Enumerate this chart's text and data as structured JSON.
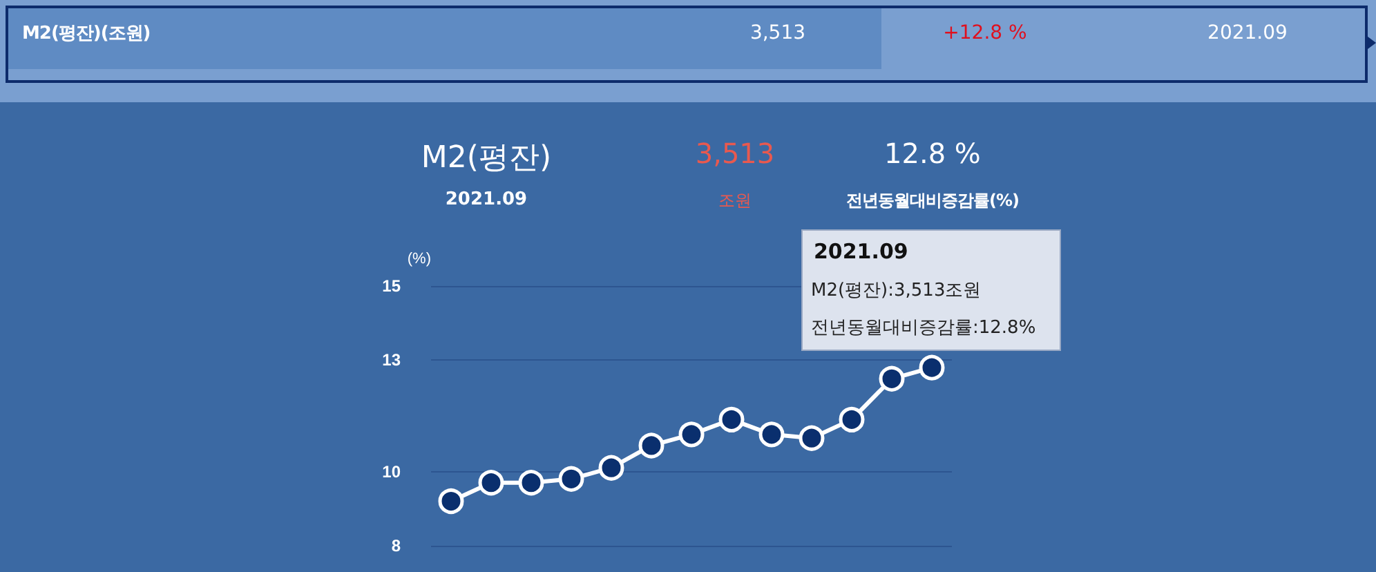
{
  "chart_data": {
    "type": "line",
    "title": "M2(평잔)",
    "subtitle": "2021.09",
    "ylabel": "(%)",
    "annotations": [
      "M2(평잔)(조원)",
      "3,513",
      "+12.8 %",
      "2021.09",
      "3,513",
      "조원",
      "12.8 %",
      "전년동월대비증감률(%)",
      "2021.09",
      "M2(평잔):3,513조원",
      "전년동월대비증감률:12.8%"
    ],
    "categories": [
      null,
      null,
      null,
      null,
      null,
      null,
      null,
      null,
      null,
      null,
      null,
      null,
      null
    ],
    "series": [
      {
        "color": "#ffffff",
        "values": [
          9.2,
          9.7,
          9.7,
          9.8,
          10.1,
          10.7,
          11.0,
          11.4,
          11.0,
          10.9,
          11.4,
          12.5,
          12.8
        ]
      }
    ],
    "ylim": [
      8,
      15
    ],
    "yticks": [
      8,
      10,
      13,
      15
    ],
    "grid": "y",
    "marker": "circle"
  }
}
